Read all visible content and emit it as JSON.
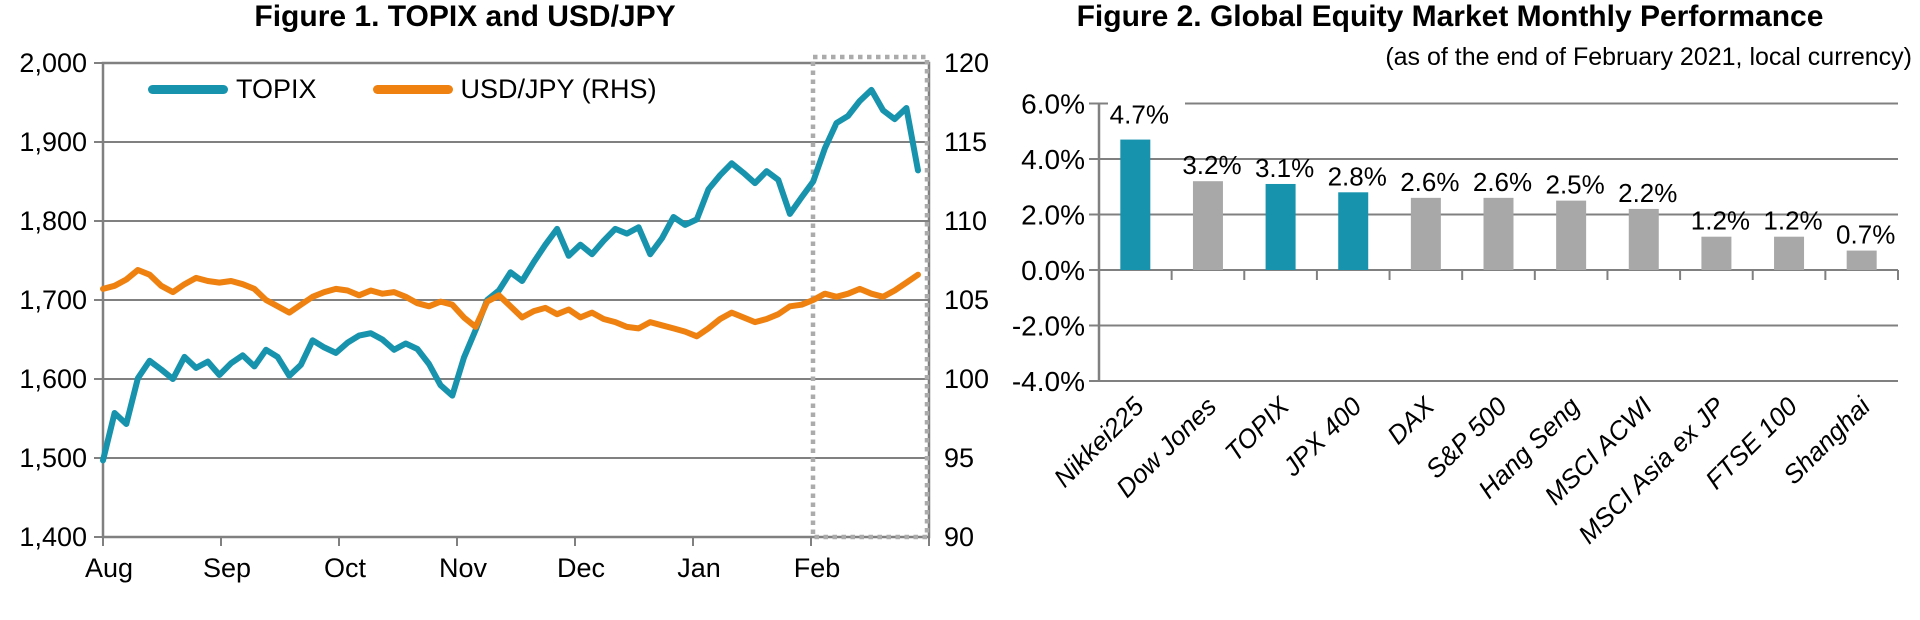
{
  "colors": {
    "teal": "#1793ad",
    "orange": "#ee8110",
    "gray": "#a8a8a8",
    "grid": "#808080",
    "highlight": "#ababab",
    "text": "#000000",
    "background": "#ffffff"
  },
  "chart_data": [
    {
      "id": "figure1",
      "type": "line",
      "title": "Figure 1. TOPIX and USD/JPY",
      "legend_position": "top-inside",
      "grid": true,
      "x_tick_labels": [
        "Aug",
        "Sep",
        "Oct",
        "Nov",
        "Dec",
        "Jan",
        "Feb"
      ],
      "y_left": {
        "min": 1400,
        "max": 2000,
        "tick_labels": [
          "2,000",
          "1,900",
          "1,800",
          "1,700",
          "1,600",
          "1,500",
          "1,400"
        ]
      },
      "y_right": {
        "min": 90,
        "max": 120,
        "tick_labels": [
          "120",
          "115",
          "110",
          "105",
          "100",
          "95",
          "90"
        ]
      },
      "highlight_region": {
        "from": "Feb",
        "to": "end",
        "style": "dotted-box"
      },
      "series": [
        {
          "name": "TOPIX",
          "axis": "left",
          "color": "#1793ad",
          "values": [
            1497,
            1557,
            1543,
            1601,
            1623,
            1612,
            1600,
            1628,
            1614,
            1622,
            1605,
            1620,
            1630,
            1616,
            1637,
            1628,
            1604,
            1618,
            1649,
            1640,
            1633,
            1646,
            1655,
            1658,
            1650,
            1637,
            1645,
            1638,
            1619,
            1592,
            1579,
            1627,
            1662,
            1700,
            1712,
            1735,
            1724,
            1748,
            1770,
            1790,
            1756,
            1770,
            1758,
            1775,
            1790,
            1784,
            1792,
            1758,
            1778,
            1805,
            1795,
            1802,
            1840,
            1858,
            1873,
            1861,
            1848,
            1863,
            1852,
            1809,
            1830,
            1850,
            1892,
            1924,
            1933,
            1952,
            1966,
            1940,
            1929,
            1943,
            1864
          ]
        },
        {
          "name": "USD/JPY (RHS)",
          "axis": "right",
          "color": "#ee8110",
          "values": [
            105.7,
            105.9,
            106.3,
            106.9,
            106.6,
            105.9,
            105.5,
            106.0,
            106.4,
            106.2,
            106.1,
            106.2,
            106.0,
            105.7,
            105.0,
            104.6,
            104.2,
            104.7,
            105.2,
            105.5,
            105.7,
            105.6,
            105.3,
            105.6,
            105.4,
            105.5,
            105.2,
            104.8,
            104.6,
            104.9,
            104.7,
            103.9,
            103.3,
            104.9,
            105.3,
            104.6,
            103.9,
            104.3,
            104.5,
            104.1,
            104.4,
            103.9,
            104.2,
            103.8,
            103.6,
            103.3,
            103.2,
            103.6,
            103.4,
            103.2,
            103.0,
            102.7,
            103.2,
            103.8,
            104.2,
            103.9,
            103.6,
            103.8,
            104.1,
            104.6,
            104.7,
            105.0,
            105.4,
            105.2,
            105.4,
            105.7,
            105.4,
            105.2,
            105.6,
            106.1,
            106.6
          ]
        }
      ]
    },
    {
      "id": "figure2",
      "type": "bar",
      "title": "Figure 2. Global Equity Market Monthly Performance",
      "subtitle": "(as of the end of February 2021, local currency)",
      "grid": true,
      "ylim": [
        -4,
        6
      ],
      "y_ticks": [
        6,
        4,
        2,
        0,
        -2,
        -4
      ],
      "y_tick_labels": [
        "6.0%",
        "4.0%",
        "2.0%",
        "0.0%",
        "-2.0%",
        "-4.0%"
      ],
      "categories": [
        "Nikkei225",
        "Dow Jones",
        "TOPIX",
        "JPX 400",
        "DAX",
        "S&P 500",
        "Hang Seng",
        "MSCI ACWI",
        "MSCI Asia ex JP",
        "FTSE 100",
        "Shanghai"
      ],
      "values": [
        4.7,
        3.2,
        3.1,
        2.8,
        2.6,
        2.6,
        2.5,
        2.2,
        1.2,
        1.2,
        0.7
      ],
      "data_labels": [
        "4.7%",
        "3.2%",
        "3.1%",
        "2.8%",
        "2.6%",
        "2.6%",
        "2.5%",
        "2.2%",
        "1.2%",
        "1.2%",
        "0.7%"
      ],
      "bar_color_keys": [
        "teal",
        "gray",
        "teal",
        "teal",
        "gray",
        "gray",
        "gray",
        "gray",
        "gray",
        "gray",
        "gray"
      ]
    }
  ]
}
